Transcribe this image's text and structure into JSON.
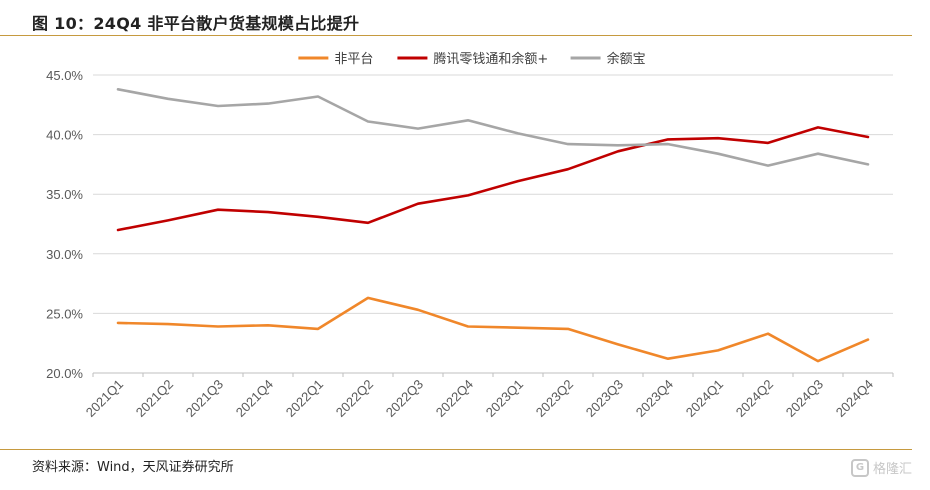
{
  "header": {
    "title": "图 10：24Q4 非平台散户货基规模占比提升"
  },
  "footer": {
    "source": "资料来源：Wind，天风证券研究所",
    "watermark": "格隆汇"
  },
  "chart_data": {
    "type": "line",
    "title": "图 10：24Q4 非平台散户货基规模占比提升",
    "categories": [
      "2021Q1",
      "2021Q2",
      "2021Q3",
      "2021Q4",
      "2022Q1",
      "2022Q2",
      "2022Q3",
      "2022Q4",
      "2023Q1",
      "2023Q2",
      "2023Q3",
      "2023Q4",
      "2024Q1",
      "2024Q2",
      "2024Q3",
      "2024Q4"
    ],
    "yticks": [
      "20.0%",
      "25.0%",
      "30.0%",
      "35.0%",
      "40.0%",
      "45.0%"
    ],
    "ylim": [
      20,
      45
    ],
    "grid": true,
    "legend_position": "top",
    "series": [
      {
        "name": "非平台",
        "color": "#f0872a",
        "values": [
          24.2,
          24.1,
          23.9,
          24.0,
          23.7,
          26.3,
          25.3,
          23.9,
          23.8,
          23.7,
          22.4,
          21.2,
          21.9,
          23.3,
          21.0,
          22.8
        ]
      },
      {
        "name": "腾讯零钱通和余额+",
        "color": "#c00000",
        "values": [
          32.0,
          32.8,
          33.7,
          33.5,
          33.1,
          32.6,
          34.2,
          34.9,
          36.1,
          37.1,
          38.6,
          39.6,
          39.7,
          39.3,
          40.6,
          39.8
        ]
      },
      {
        "name": "余额宝",
        "color": "#a6a6a6",
        "values": [
          43.8,
          43.0,
          42.4,
          42.6,
          43.2,
          41.1,
          40.5,
          41.2,
          40.1,
          39.2,
          39.1,
          39.2,
          38.4,
          37.4,
          38.4,
          37.5
        ]
      }
    ]
  }
}
